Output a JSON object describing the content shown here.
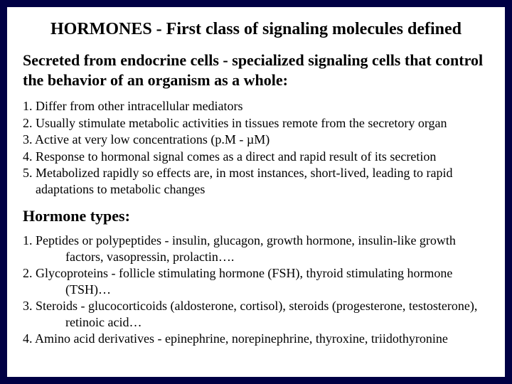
{
  "title": "HORMONES - First class of signaling molecules defined",
  "subtitle": "Secreted from endocrine cells - specialized signaling cells that control the behavior of an organism as a whole:",
  "props": {
    "p1": "1. Differ from other intracellular mediators",
    "p2": "2. Usually stimulate metabolic activities in tissues remote from the secretory organ",
    "p3": "3. Active at very low concentrations (p.M - µM)",
    "p4": "4. Response to hormonal signal comes as a direct and rapid result of its secretion",
    "p5": "5. Metabolized rapidly so effects are, in most instances, short-lived, leading to rapid adaptations to metabolic changes"
  },
  "types_head": "Hormone types:",
  "types": {
    "t1": "1. Peptides or polypeptides - insulin, glucagon, growth hormone, insulin-like growth factors, vasopressin, prolactin….",
    "t2": "2. Glycoproteins - follicle stimulating hormone (FSH), thyroid stimulating hormone (TSH)…",
    "t3": "3. Steroids - glucocorticoids (aldosterone, cortisol), steroids (progesterone, testosterone), retinoic acid…",
    "t4": "4. Amino acid derivatives - epinephrine, norepinephrine, thyroxine, triidothyronine"
  }
}
